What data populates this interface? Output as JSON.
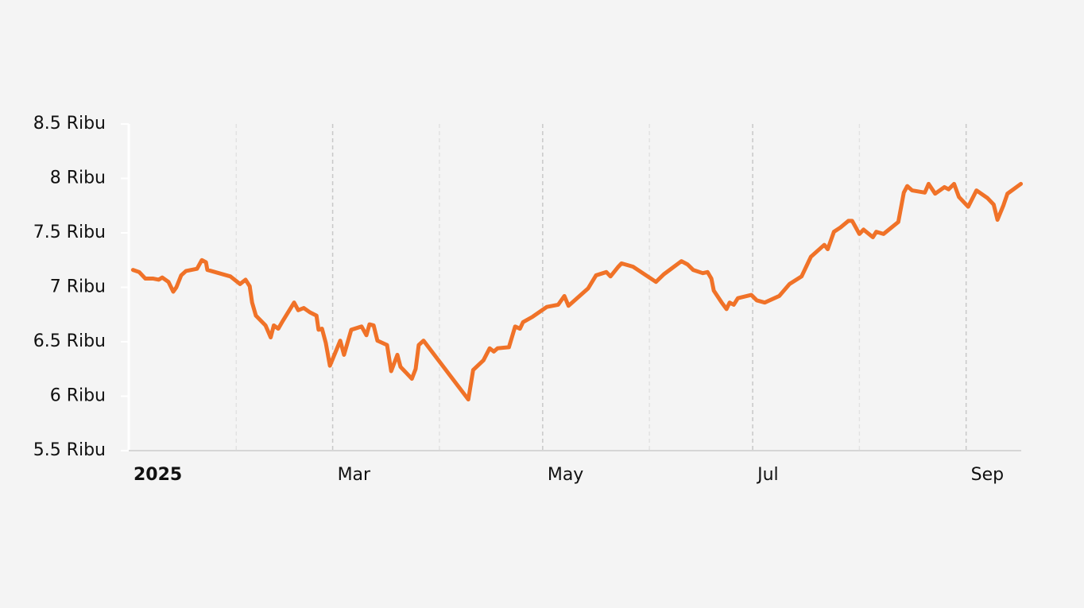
{
  "chart_data": {
    "type": "line",
    "color": "#f07228",
    "x": [
      1,
      2.8,
      4.6,
      6.9,
      8.5,
      9.5,
      11.3,
      12.7,
      13.6,
      15,
      16.4,
      19.6,
      21,
      22.2,
      22.6,
      29.3,
      32.1,
      33.7,
      34.9,
      35.6,
      36.7,
      39.5,
      41,
      41.9,
      43.2,
      44.3,
      47.8,
      49,
      50.6,
      52.4,
      54.3,
      54.9,
      55.9,
      57,
      58.2,
      61.2,
      62.3,
      64.4,
      67.4,
      68.8,
      69.7,
      70.9,
      72,
      74.8,
      76,
      77.8,
      78.7,
      82,
      83.1,
      84,
      85.4,
      98.4,
      99.8,
      102.8,
      104.6,
      105.8,
      106.9,
      110.2,
      112,
      113.4,
      114.3,
      117.1,
      121.2,
      124.5,
      126.3,
      127.5,
      133.2,
      135.5,
      138.5,
      139.7,
      142,
      142.9,
      146.2,
      152.9,
      155.2,
      160.3,
      162.1,
      163.7,
      166.5,
      167.9,
      169,
      169.7,
      172,
      173.4,
      174.3,
      175.5,
      176.7,
      180.6,
      182.2,
      184.5,
      188.7,
      191.7,
      195.2,
      197.9,
      201.8,
      202.8,
      204.6,
      206.5,
      208.8,
      209.9,
      212,
      213.2,
      215.9,
      216.9,
      219,
      223.3,
      224.9,
      225.9,
      227.3,
      231,
      232.1,
      234,
      236.7,
      237.9,
      239.5,
      240.9,
      243.6,
      246,
      249.2,
      251,
      252.1,
      253.8,
      255,
      258.9
    ],
    "values": [
      7.16,
      7.14,
      7.08,
      7.08,
      7.07,
      7.09,
      7.05,
      6.96,
      7.0,
      7.11,
      7.15,
      7.17,
      7.25,
      7.23,
      7.16,
      7.1,
      7.03,
      7.07,
      7.01,
      6.86,
      6.74,
      6.65,
      6.54,
      6.65,
      6.62,
      6.68,
      6.86,
      6.79,
      6.81,
      6.77,
      6.74,
      6.61,
      6.62,
      6.49,
      6.28,
      6.51,
      6.38,
      6.61,
      6.64,
      6.56,
      6.66,
      6.65,
      6.51,
      6.47,
      6.23,
      6.38,
      6.27,
      6.16,
      6.25,
      6.47,
      6.51,
      5.97,
      6.24,
      6.33,
      6.44,
      6.41,
      6.44,
      6.45,
      6.64,
      6.62,
      6.68,
      6.73,
      6.82,
      6.84,
      6.92,
      6.83,
      6.99,
      7.11,
      7.14,
      7.1,
      7.19,
      7.22,
      7.19,
      7.05,
      7.12,
      7.24,
      7.21,
      7.16,
      7.13,
      7.14,
      7.08,
      6.97,
      6.86,
      6.8,
      6.86,
      6.84,
      6.9,
      6.93,
      6.88,
      6.86,
      6.92,
      7.03,
      7.1,
      7.28,
      7.39,
      7.35,
      7.51,
      7.55,
      7.61,
      7.61,
      7.49,
      7.53,
      7.46,
      7.51,
      7.49,
      7.6,
      7.87,
      7.93,
      7.89,
      7.87,
      7.95,
      7.86,
      7.92,
      7.9,
      7.95,
      7.83,
      7.74,
      7.89,
      7.82,
      7.76,
      7.62,
      7.75,
      7.86,
      7.95
    ],
    "xlim": [
      0,
      259
    ],
    "xticks": [
      {
        "value": 0,
        "label": "2025"
      },
      {
        "value": 59,
        "label": "Mar"
      },
      {
        "value": 120,
        "label": "May"
      },
      {
        "value": 181,
        "label": "Jul"
      },
      {
        "value": 243,
        "label": "Sep"
      }
    ],
    "xminor": [
      31,
      90,
      151,
      212
    ],
    "ylim": [
      5.5,
      8.5
    ],
    "yticks": [
      {
        "value": 5.5,
        "label": "5.5 Ribu"
      },
      {
        "value": 6,
        "label": "6 Ribu"
      },
      {
        "value": 6.5,
        "label": "6.5 Ribu"
      },
      {
        "value": 7,
        "label": "7 Ribu"
      },
      {
        "value": 7.5,
        "label": "7.5 Ribu"
      },
      {
        "value": 8,
        "label": "8 Ribu"
      },
      {
        "value": 8.5,
        "label": "8.5 Ribu"
      }
    ]
  }
}
